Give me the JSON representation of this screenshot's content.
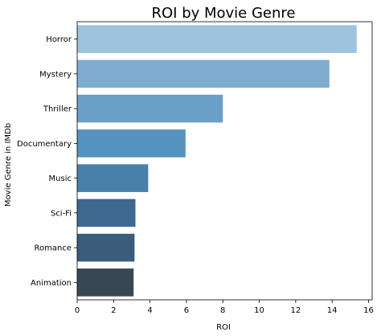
{
  "chart_data": {
    "type": "bar",
    "orientation": "horizontal",
    "title": "ROI by Movie Genre",
    "xlabel": "ROI",
    "ylabel": "Movie Genre in IMDb",
    "categories": [
      "Horror",
      "Mystery",
      "Thriller",
      "Documentary",
      "Music",
      "Sci-Fi",
      "Romance",
      "Animation"
    ],
    "values": [
      15.35,
      13.85,
      8.0,
      5.95,
      3.9,
      3.2,
      3.15,
      3.1
    ],
    "colors": [
      "#9ec3dc",
      "#7fadcf",
      "#6a9fc8",
      "#5592c0",
      "#4880a9",
      "#3f6890",
      "#395d7a",
      "#384754"
    ],
    "xlim": [
      0,
      16.2
    ],
    "xticks": [
      0,
      2,
      4,
      6,
      8,
      10,
      12,
      14,
      16
    ],
    "grid": false,
    "legend": "none"
  }
}
